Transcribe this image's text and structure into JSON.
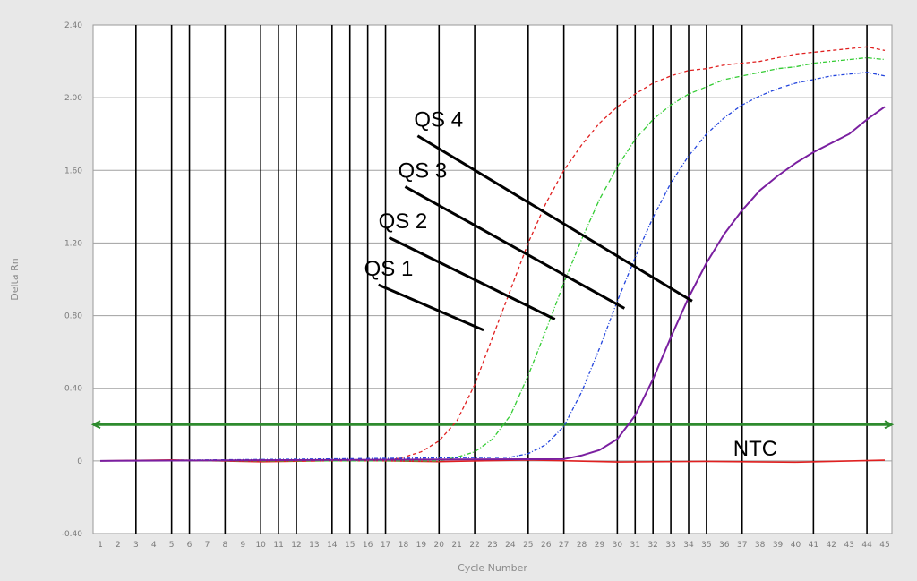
{
  "chart_data": {
    "type": "line",
    "xlabel": "Cycle Number",
    "ylabel": "Delta Rn",
    "xlim": [
      1,
      45
    ],
    "ylim": [
      -0.4,
      2.4
    ],
    "x_ticks": [
      1,
      2,
      3,
      4,
      5,
      6,
      7,
      8,
      9,
      10,
      11,
      12,
      13,
      14,
      15,
      16,
      17,
      18,
      19,
      20,
      21,
      22,
      23,
      24,
      25,
      26,
      27,
      28,
      29,
      30,
      31,
      32,
      33,
      34,
      35,
      36,
      37,
      38,
      39,
      40,
      41,
      42,
      43,
      44,
      45
    ],
    "y_ticks": [
      {
        "value": -0.4,
        "label": "-0.40"
      },
      {
        "value": 0,
        "label": "0"
      },
      {
        "value": 0.4,
        "label": "0.40"
      },
      {
        "value": 0.8,
        "label": "0.80"
      },
      {
        "value": 1.2,
        "label": "1.20"
      },
      {
        "value": 1.6,
        "label": "1.60"
      },
      {
        "value": 2.0,
        "label": "2.00"
      },
      {
        "value": 2.4,
        "label": "2.40"
      }
    ],
    "vertical_gridlines_at_cycles": [
      3,
      5,
      6,
      8,
      10,
      11,
      12,
      14,
      15,
      16,
      17,
      20,
      22,
      25,
      27,
      30,
      31,
      32,
      33,
      34,
      35,
      37,
      41,
      44
    ],
    "threshold": {
      "value": 0.2,
      "color": "#2e8b2e"
    },
    "series": [
      {
        "color": "#e02020",
        "dash": "4 3",
        "x": [
          1,
          17,
          18,
          19,
          20,
          21,
          22,
          23,
          24,
          25,
          26,
          27,
          28,
          29,
          30,
          31,
          32,
          33,
          34,
          35,
          36,
          37,
          38,
          39,
          40,
          41,
          42,
          43,
          44,
          45
        ],
        "y": [
          0,
          0,
          0.02,
          0.05,
          0.11,
          0.22,
          0.42,
          0.68,
          0.94,
          1.2,
          1.42,
          1.6,
          1.74,
          1.86,
          1.95,
          2.02,
          2.08,
          2.12,
          2.15,
          2.16,
          2.18,
          2.19,
          2.2,
          2.22,
          2.24,
          2.25,
          2.26,
          2.27,
          2.28,
          2.26
        ]
      },
      {
        "color": "#33cc33",
        "dash": "5 2 1 2",
        "x": [
          1,
          20,
          21,
          22,
          23,
          24,
          25,
          26,
          27,
          28,
          29,
          30,
          31,
          32,
          33,
          34,
          35,
          36,
          37,
          38,
          39,
          40,
          41,
          42,
          43,
          44,
          45
        ],
        "y": [
          0,
          0,
          0.02,
          0.05,
          0.12,
          0.25,
          0.47,
          0.72,
          0.98,
          1.22,
          1.44,
          1.62,
          1.77,
          1.88,
          1.96,
          2.02,
          2.06,
          2.1,
          2.12,
          2.14,
          2.16,
          2.17,
          2.19,
          2.2,
          2.21,
          2.22,
          2.21
        ]
      },
      {
        "color": "#2244dd",
        "dash": "4 2 1 2",
        "x": [
          1,
          24,
          25,
          26,
          27,
          28,
          29,
          30,
          31,
          32,
          33,
          34,
          35,
          36,
          37,
          38,
          39,
          40,
          41,
          42,
          43,
          44,
          45
        ],
        "y": [
          0,
          0.02,
          0.04,
          0.09,
          0.19,
          0.38,
          0.62,
          0.88,
          1.12,
          1.34,
          1.53,
          1.68,
          1.8,
          1.89,
          1.96,
          2.01,
          2.05,
          2.08,
          2.1,
          2.12,
          2.13,
          2.14,
          2.12
        ]
      },
      {
        "color": "#7a1fa0",
        "dash": "",
        "x": [
          1,
          27,
          28,
          29,
          30,
          31,
          32,
          33,
          34,
          35,
          36,
          37,
          38,
          39,
          40,
          41,
          42,
          43,
          44,
          45
        ],
        "y": [
          0,
          0.01,
          0.03,
          0.06,
          0.12,
          0.25,
          0.45,
          0.68,
          0.9,
          1.09,
          1.25,
          1.38,
          1.49,
          1.57,
          1.64,
          1.7,
          1.75,
          1.8,
          1.88,
          1.95
        ]
      }
    ],
    "ntc": {
      "color": "#e02020",
      "x": [
        1,
        5,
        10,
        15,
        20,
        25,
        30,
        35,
        40,
        45
      ],
      "y": [
        0,
        0.005,
        -0.005,
        0.003,
        -0.004,
        0.005,
        -0.006,
        -0.003,
        -0.007,
        0.004
      ]
    },
    "annotations": [
      {
        "text": "QS 4",
        "label_at": [
          18.6,
          1.84
        ],
        "line_from": [
          18.8,
          1.79
        ],
        "line_to": [
          34.2,
          0.88
        ]
      },
      {
        "text": "QS 3",
        "label_at": [
          17.7,
          1.56
        ],
        "line_from": [
          18.1,
          1.51
        ],
        "line_to": [
          30.4,
          0.84
        ]
      },
      {
        "text": "QS 2",
        "label_at": [
          16.6,
          1.28
        ],
        "line_from": [
          17.2,
          1.23
        ],
        "line_to": [
          26.5,
          0.78
        ]
      },
      {
        "text": "QS 1",
        "label_at": [
          15.8,
          1.02
        ],
        "line_from": [
          16.6,
          0.97
        ],
        "line_to": [
          22.5,
          0.72
        ]
      },
      {
        "text": "NTC",
        "label_at": [
          36.5,
          0.03
        ]
      }
    ]
  }
}
